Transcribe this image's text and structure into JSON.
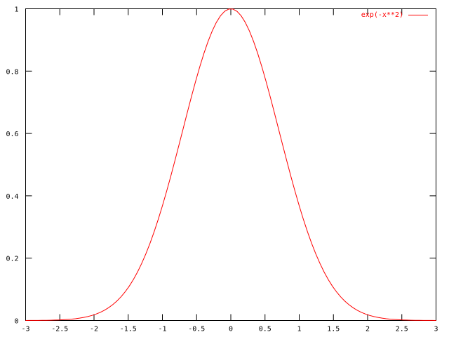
{
  "chart_data": {
    "type": "line",
    "title": "",
    "xlabel": "",
    "ylabel": "",
    "xlim": [
      -3,
      3
    ],
    "ylim": [
      0,
      1
    ],
    "xticks": [
      "-3",
      "-2.5",
      "-2",
      "-1.5",
      "-1",
      "-0.5",
      "0",
      "0.5",
      "1",
      "1.5",
      "2",
      "2.5",
      "3"
    ],
    "yticks": [
      "0",
      "0.2",
      "0.4",
      "0.6",
      "0.8",
      "1"
    ],
    "grid": false,
    "legend_position": "top-right",
    "series": [
      {
        "name": "exp(-x**2)",
        "function": "exp(-x**2)",
        "samples": 100,
        "color": "#ff0000"
      }
    ]
  }
}
